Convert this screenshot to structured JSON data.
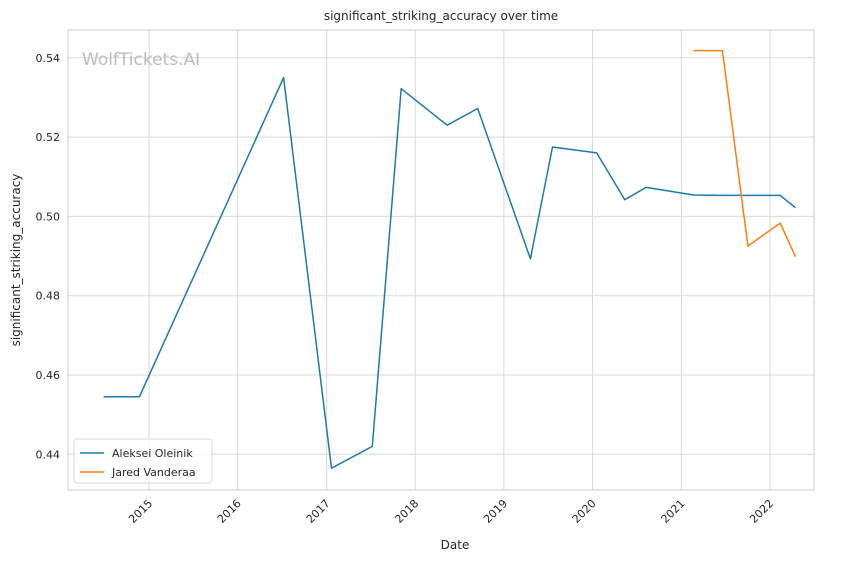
{
  "chart_data": {
    "type": "line",
    "title": "significant_striking_accuracy over time",
    "xlabel": "Date",
    "ylabel": "significant_striking_accuracy",
    "watermark": "WolfTickets.AI",
    "xlim": [
      "2014-02-01",
      "2022-07-01"
    ],
    "ylim": [
      0.431,
      0.547
    ],
    "x_ticks": [
      "2015-01-01",
      "2016-01-01",
      "2017-01-01",
      "2018-01-01",
      "2019-01-01",
      "2020-01-01",
      "2021-01-01",
      "2022-01-01"
    ],
    "x_tick_labels": [
      "2015",
      "2016",
      "2017",
      "2018",
      "2019",
      "2020",
      "2021",
      "2022"
    ],
    "y_ticks": [
      0.44,
      0.46,
      0.48,
      0.5,
      0.52,
      0.54
    ],
    "y_tick_labels": [
      "0.44",
      "0.46",
      "0.48",
      "0.50",
      "0.52",
      "0.54"
    ],
    "grid": true,
    "legend_position": "lower-left",
    "series": [
      {
        "name": "Aleksei Oleinik",
        "color": "#1f77b4",
        "points": [
          [
            "2014-06-28",
            0.4545
          ],
          [
            "2014-11-22",
            0.4545
          ],
          [
            "2016-07-08",
            0.535
          ],
          [
            "2017-01-21",
            0.4365
          ],
          [
            "2017-07-08",
            0.442
          ],
          [
            "2017-11-04",
            0.5322
          ],
          [
            "2018-05-12",
            0.523
          ],
          [
            "2018-09-15",
            0.5272
          ],
          [
            "2019-04-20",
            0.4893
          ],
          [
            "2019-07-20",
            0.5175
          ],
          [
            "2020-01-18",
            0.516
          ],
          [
            "2020-05-13",
            0.5042
          ],
          [
            "2020-08-08",
            0.5073
          ],
          [
            "2021-02-20",
            0.5054
          ],
          [
            "2021-06-19",
            0.5053
          ],
          [
            "2021-10-30",
            0.5053
          ],
          [
            "2022-02-12",
            0.5053
          ],
          [
            "2022-04-16",
            0.5022
          ]
        ]
      },
      {
        "name": "Jared Vanderaa",
        "color": "#ff7f0e",
        "points": [
          [
            "2021-02-20",
            0.5418
          ],
          [
            "2021-06-19",
            0.5418
          ],
          [
            "2021-10-02",
            0.4925
          ],
          [
            "2022-02-12",
            0.4983
          ],
          [
            "2022-04-16",
            0.4898
          ]
        ]
      }
    ]
  }
}
